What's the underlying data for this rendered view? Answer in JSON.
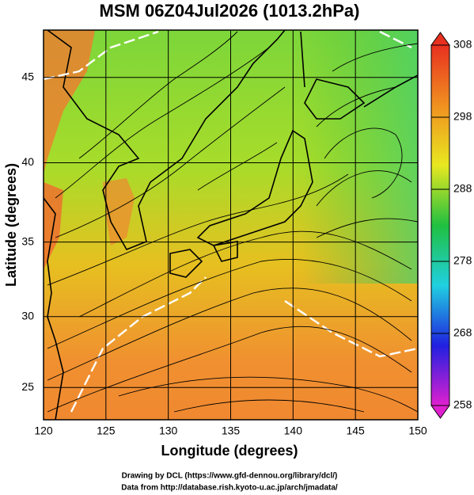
{
  "title": "MSM 06Z04Jul2026 (1013.2hPa)",
  "x_axis": {
    "label": "Longitude (degrees)",
    "lim": [
      120,
      150
    ],
    "ticks": [
      120,
      125,
      130,
      135,
      140,
      145,
      150
    ]
  },
  "y_axis": {
    "label": "Latitude  (degrees)",
    "lim": [
      22.65,
      47.6
    ],
    "ticks": [
      25,
      30,
      35,
      40,
      45
    ],
    "scale": "mercator"
  },
  "colorbar": {
    "lim": [
      258,
      308
    ],
    "ticks": [
      258,
      268,
      278,
      288,
      298,
      308
    ],
    "colors": [
      "#e020d0",
      "#2020e0",
      "#20d0e0",
      "#20c040",
      "#e8e820",
      "#f09020",
      "#e83020"
    ]
  },
  "footer": [
    "Drawing by DCL (https://www.gfd-dennou.org/library/dcl/)",
    "Data from http://database.rish.kyoto-u.ac.jp/arch/jmadata/"
  ]
}
